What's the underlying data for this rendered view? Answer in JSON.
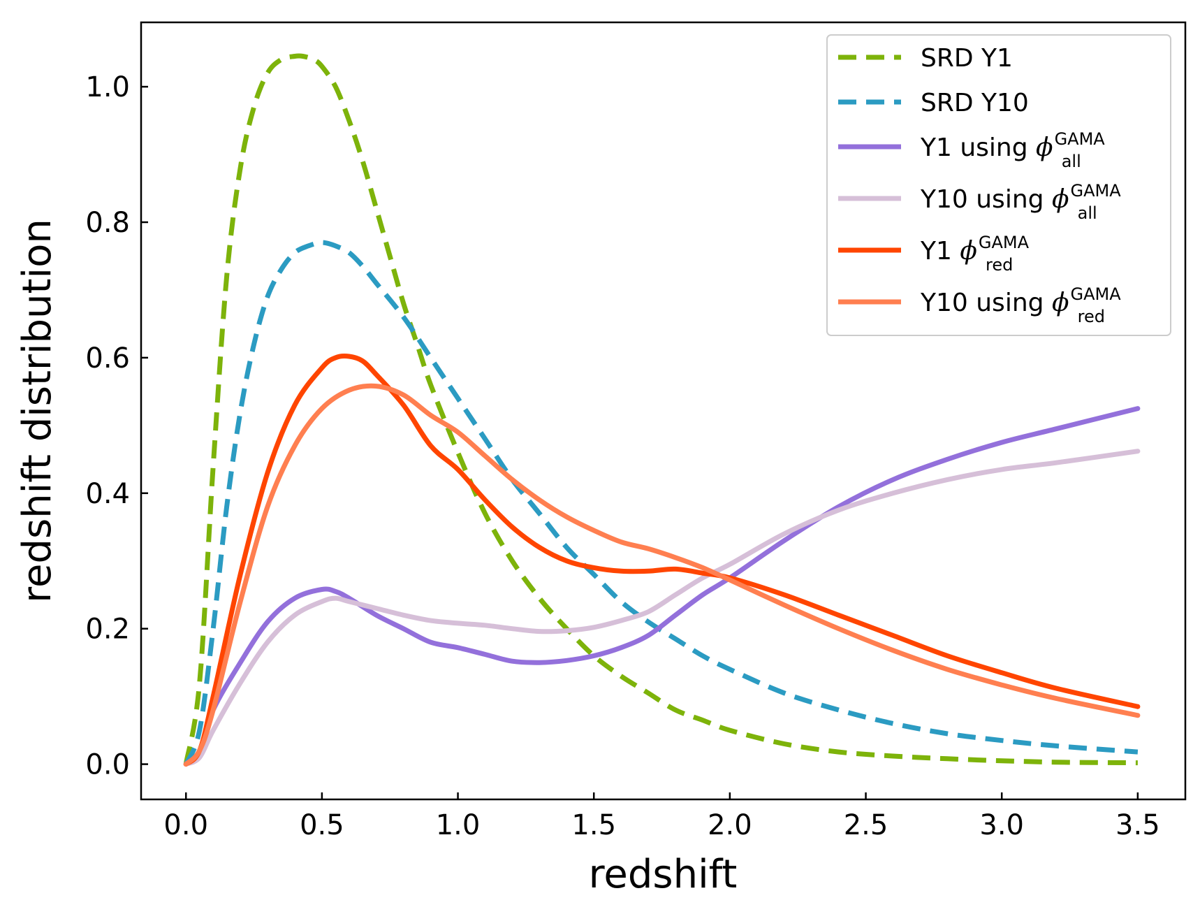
{
  "chart_data": {
    "type": "line",
    "title": "",
    "xlabel": "redshift",
    "ylabel": "redshift distribution",
    "xlim": [
      -0.165,
      3.675
    ],
    "ylim": [
      -0.052,
      1.095
    ],
    "xticks": [
      "0.0",
      "0.5",
      "1.0",
      "1.5",
      "2.0",
      "2.5",
      "3.0",
      "3.5"
    ],
    "yticks": [
      "0.0",
      "0.2",
      "0.4",
      "0.6",
      "0.8",
      "1.0"
    ],
    "grid": false,
    "legend_position": "top-right",
    "series": [
      {
        "name": "SRD Y1",
        "legend_parts": [
          "SRD Y1"
        ],
        "color": "#7db30a",
        "dashed": true,
        "x": [
          0.0,
          0.05,
          0.1,
          0.15,
          0.2,
          0.25,
          0.3,
          0.35,
          0.4,
          0.43,
          0.47,
          0.5,
          0.55,
          0.6,
          0.65,
          0.7,
          0.75,
          0.8,
          0.85,
          0.9,
          1.0,
          1.1,
          1.2,
          1.3,
          1.4,
          1.5,
          1.6,
          1.7,
          1.8,
          1.9,
          2.0,
          2.2,
          2.4,
          2.6,
          2.8,
          3.0,
          3.2,
          3.5
        ],
        "y": [
          0.0,
          0.12,
          0.44,
          0.72,
          0.88,
          0.97,
          1.02,
          1.04,
          1.045,
          1.045,
          1.04,
          1.03,
          1.0,
          0.95,
          0.89,
          0.82,
          0.75,
          0.68,
          0.62,
          0.56,
          0.46,
          0.37,
          0.3,
          0.245,
          0.2,
          0.16,
          0.13,
          0.105,
          0.08,
          0.065,
          0.05,
          0.03,
          0.018,
          0.012,
          0.008,
          0.005,
          0.003,
          0.002
        ]
      },
      {
        "name": "SRD Y10",
        "legend_parts": [
          "SRD Y10"
        ],
        "color": "#2b9bc2",
        "dashed": true,
        "x": [
          0.0,
          0.05,
          0.1,
          0.15,
          0.2,
          0.25,
          0.3,
          0.35,
          0.4,
          0.45,
          0.5,
          0.55,
          0.6,
          0.65,
          0.7,
          0.8,
          0.9,
          1.0,
          1.1,
          1.2,
          1.3,
          1.4,
          1.5,
          1.6,
          1.7,
          1.8,
          1.9,
          2.0,
          2.2,
          2.4,
          2.6,
          2.8,
          3.0,
          3.2,
          3.5
        ],
        "y": [
          0.0,
          0.05,
          0.2,
          0.38,
          0.52,
          0.62,
          0.69,
          0.73,
          0.755,
          0.765,
          0.77,
          0.765,
          0.755,
          0.735,
          0.71,
          0.66,
          0.6,
          0.54,
          0.48,
          0.42,
          0.37,
          0.32,
          0.28,
          0.24,
          0.21,
          0.185,
          0.16,
          0.14,
          0.105,
          0.08,
          0.06,
          0.045,
          0.035,
          0.027,
          0.018
        ]
      },
      {
        "name": "Y1 using φ_all^GAMA",
        "legend_parts": [
          "Y1 using ",
          "all",
          "GAMA"
        ],
        "color": "#9370db",
        "dashed": false,
        "x": [
          0.0,
          0.05,
          0.1,
          0.2,
          0.3,
          0.4,
          0.5,
          0.55,
          0.6,
          0.7,
          0.8,
          0.9,
          1.0,
          1.1,
          1.2,
          1.3,
          1.4,
          1.5,
          1.6,
          1.7,
          1.8,
          1.9,
          2.0,
          2.2,
          2.4,
          2.6,
          2.8,
          3.0,
          3.2,
          3.5
        ],
        "y": [
          0.0,
          0.02,
          0.08,
          0.15,
          0.21,
          0.245,
          0.258,
          0.255,
          0.245,
          0.22,
          0.2,
          0.18,
          0.172,
          0.162,
          0.152,
          0.15,
          0.153,
          0.16,
          0.172,
          0.19,
          0.22,
          0.25,
          0.275,
          0.33,
          0.38,
          0.42,
          0.45,
          0.475,
          0.495,
          0.525
        ]
      },
      {
        "name": "Y10 using φ_all^GAMA",
        "legend_parts": [
          "Y10 using ",
          "all",
          "GAMA"
        ],
        "color": "#d6bfd8",
        "dashed": false,
        "x": [
          0.0,
          0.05,
          0.1,
          0.2,
          0.3,
          0.4,
          0.5,
          0.55,
          0.6,
          0.7,
          0.8,
          0.9,
          1.0,
          1.1,
          1.2,
          1.3,
          1.4,
          1.5,
          1.6,
          1.7,
          1.8,
          1.9,
          2.0,
          2.2,
          2.4,
          2.6,
          2.8,
          3.0,
          3.2,
          3.5
        ],
        "y": [
          0.0,
          0.01,
          0.05,
          0.12,
          0.18,
          0.22,
          0.24,
          0.245,
          0.24,
          0.23,
          0.22,
          0.212,
          0.208,
          0.205,
          0.2,
          0.196,
          0.197,
          0.202,
          0.212,
          0.225,
          0.25,
          0.275,
          0.295,
          0.34,
          0.375,
          0.4,
          0.42,
          0.435,
          0.445,
          0.462
        ]
      },
      {
        "name": "Y1 φ_red^GAMA",
        "legend_parts": [
          "Y1 ",
          "red",
          "GAMA"
        ],
        "color": "#ff4500",
        "dashed": false,
        "x": [
          0.0,
          0.05,
          0.1,
          0.2,
          0.3,
          0.4,
          0.5,
          0.55,
          0.6,
          0.65,
          0.7,
          0.8,
          0.9,
          1.0,
          1.1,
          1.2,
          1.3,
          1.4,
          1.5,
          1.6,
          1.7,
          1.8,
          1.9,
          2.0,
          2.2,
          2.4,
          2.6,
          2.8,
          3.0,
          3.2,
          3.5
        ],
        "y": [
          0.0,
          0.02,
          0.1,
          0.28,
          0.43,
          0.53,
          0.585,
          0.6,
          0.602,
          0.595,
          0.575,
          0.53,
          0.47,
          0.435,
          0.39,
          0.35,
          0.32,
          0.3,
          0.29,
          0.285,
          0.285,
          0.288,
          0.282,
          0.275,
          0.25,
          0.22,
          0.19,
          0.16,
          0.135,
          0.112,
          0.085
        ]
      },
      {
        "name": "Y10 using φ_red^GAMA",
        "legend_parts": [
          "Y10 using ",
          "red",
          "GAMA"
        ],
        "color": "#ff7f50",
        "dashed": false,
        "x": [
          0.0,
          0.05,
          0.1,
          0.2,
          0.3,
          0.4,
          0.5,
          0.6,
          0.7,
          0.8,
          0.9,
          1.0,
          1.1,
          1.2,
          1.3,
          1.4,
          1.5,
          1.6,
          1.7,
          1.8,
          1.9,
          2.0,
          2.2,
          2.4,
          2.6,
          2.8,
          3.0,
          3.2,
          3.5
        ],
        "y": [
          0.0,
          0.02,
          0.08,
          0.24,
          0.38,
          0.47,
          0.525,
          0.552,
          0.558,
          0.545,
          0.515,
          0.49,
          0.455,
          0.42,
          0.39,
          0.365,
          0.345,
          0.328,
          0.318,
          0.305,
          0.29,
          0.272,
          0.235,
          0.2,
          0.168,
          0.14,
          0.117,
          0.097,
          0.072
        ]
      }
    ]
  }
}
